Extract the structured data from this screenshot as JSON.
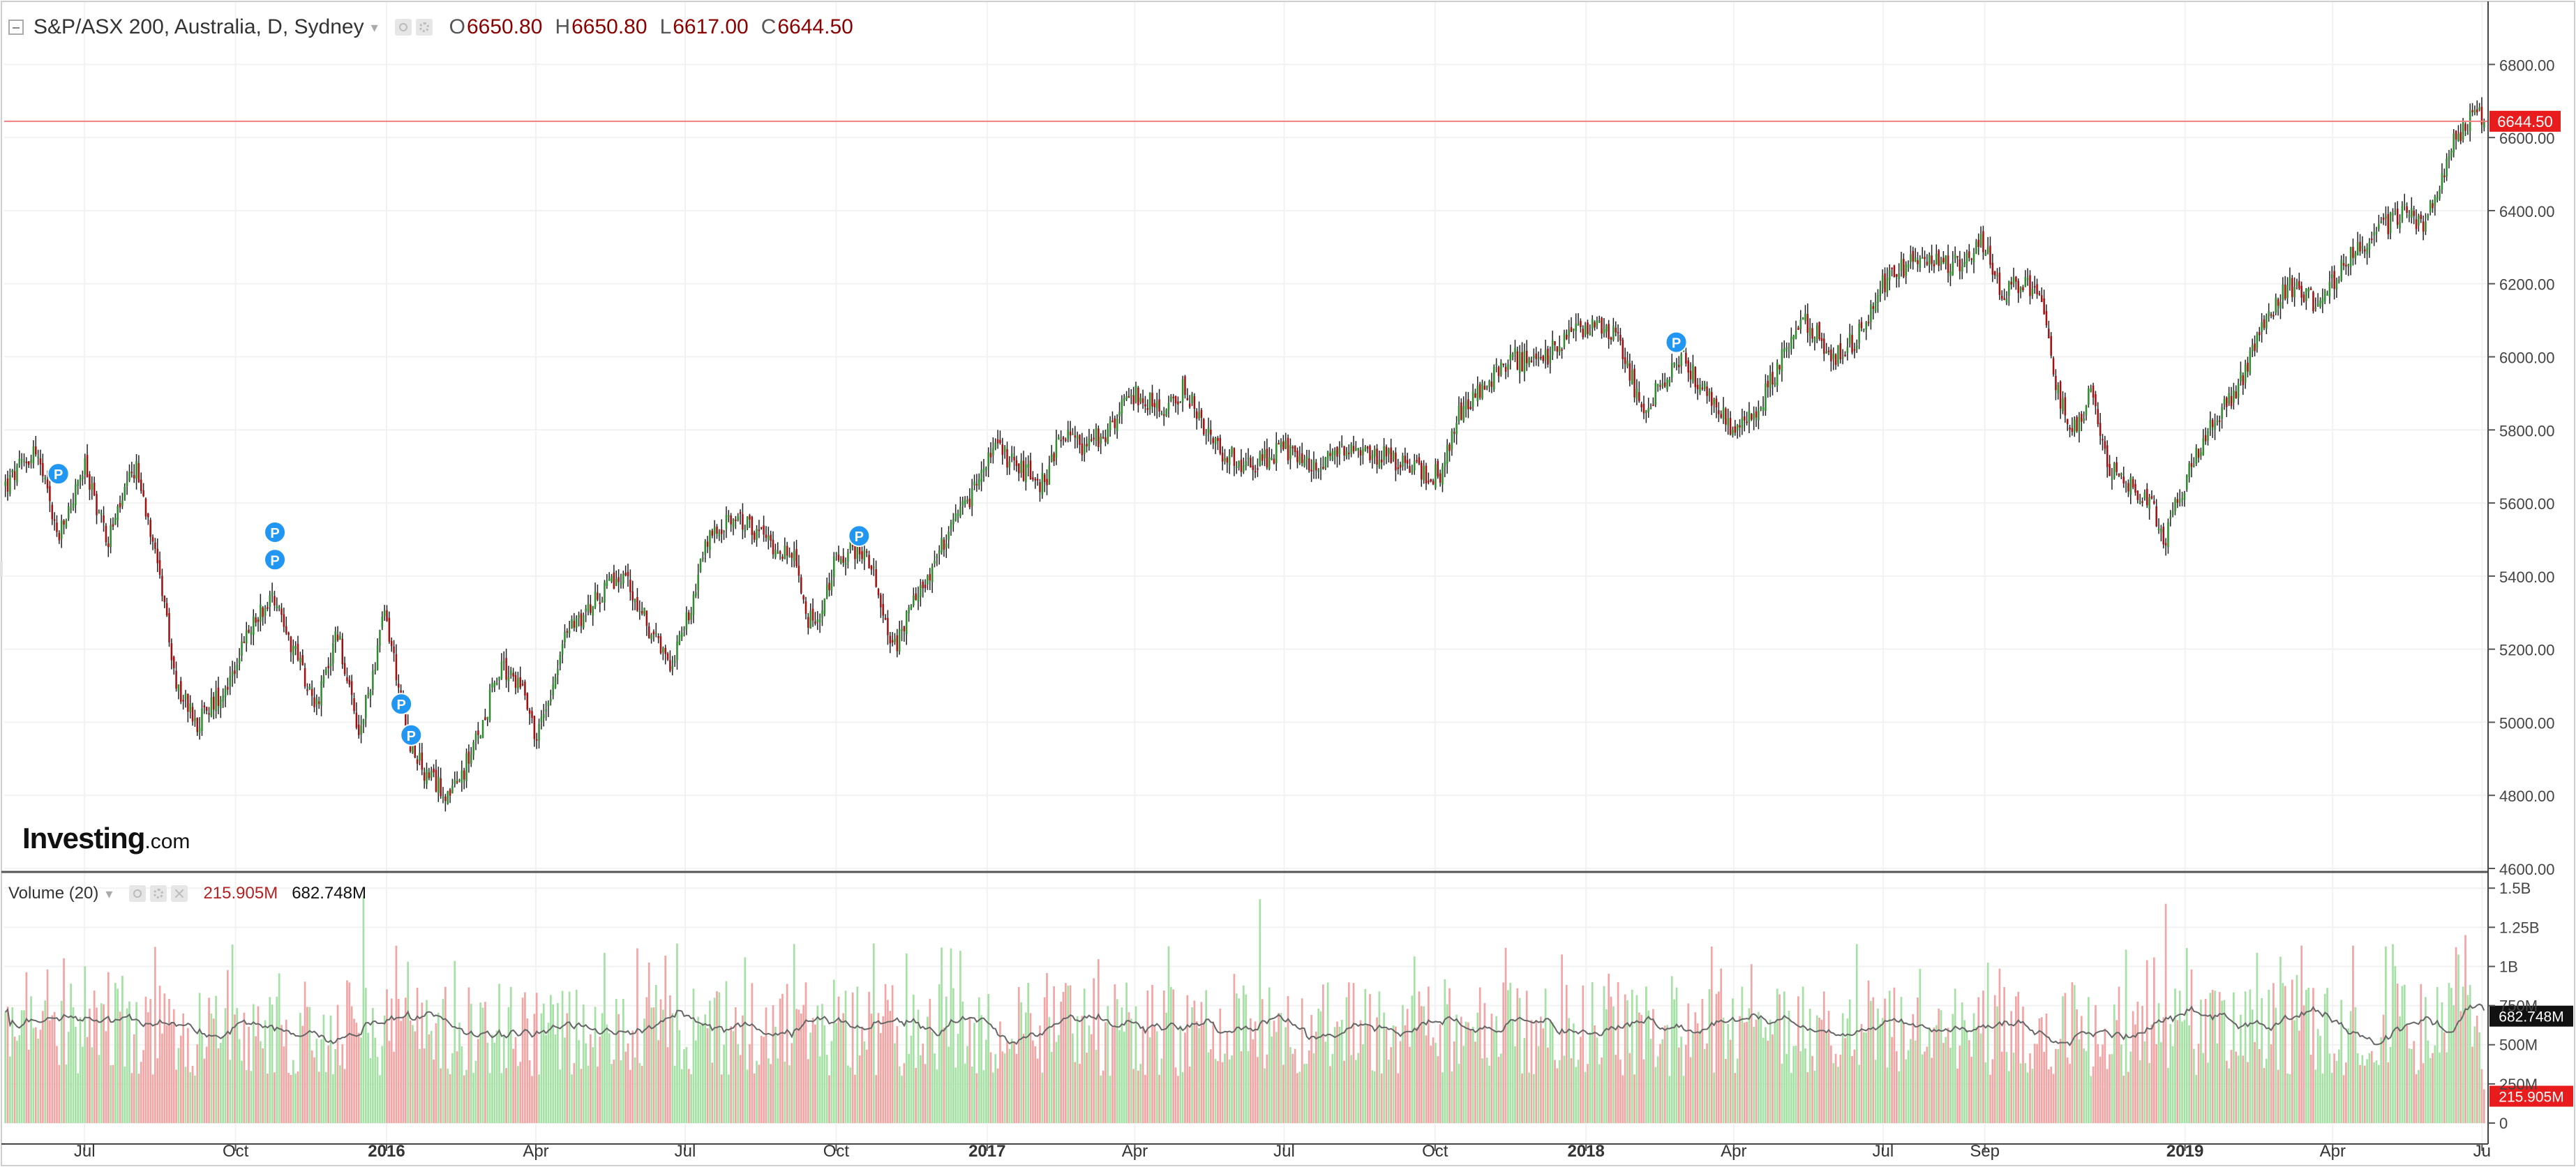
{
  "legend": {
    "symbol": "S&P/ASX 200, Australia, D, Sydney",
    "open_key": "O",
    "open_val": "6650.80",
    "high_key": "H",
    "high_val": "6650.80",
    "low_key": "L",
    "low_val": "6617.00",
    "close_key": "C",
    "close_val": "6644.50"
  },
  "volume_legend": {
    "label": "Volume (20)",
    "value_a": "215.905M",
    "value_b": "682.748M"
  },
  "logo": {
    "main": "Investing",
    "domain": ".com"
  },
  "colors": {
    "up_candle": "#2e8b2e",
    "down_candle": "#a30f0f",
    "wick": "#222222",
    "up_volume": "#a5e0a5",
    "down_volume": "#f2a5a5",
    "price_line": "#f08080",
    "price_tag_bg": "#e81c1c",
    "volume_tag_bg": "#111111",
    "grid": "#f2f2f2",
    "marker": "#2196f3",
    "volume_ma_line": "#666666"
  },
  "chart_data": [
    {
      "type": "candlestick",
      "title": "S&P/ASX 200, Australia, D, Sydney",
      "ylim": [
        4600,
        6900
      ],
      "y_ticks": [
        "6800.00",
        "6600.00",
        "6400.00",
        "6200.00",
        "6000.00",
        "5800.00",
        "5600.00",
        "5400.00",
        "5200.00",
        "5000.00",
        "4800.00",
        "4600.00"
      ],
      "x_ticks": [
        {
          "label": "Jul",
          "date": "2015-07-01"
        },
        {
          "label": "Oct",
          "date": "2015-10-01"
        },
        {
          "label": "2016",
          "date": "2016-01-01"
        },
        {
          "label": "Apr",
          "date": "2016-04-01"
        },
        {
          "label": "Jul",
          "date": "2016-07-01"
        },
        {
          "label": "Oct",
          "date": "2016-10-01"
        },
        {
          "label": "2017",
          "date": "2017-01-01"
        },
        {
          "label": "Apr",
          "date": "2017-04-01"
        },
        {
          "label": "Jul",
          "date": "2017-07-01"
        },
        {
          "label": "Oct",
          "date": "2017-10-01"
        },
        {
          "label": "2018",
          "date": "2018-01-01"
        },
        {
          "label": "Apr",
          "date": "2018-04-01"
        },
        {
          "label": "Jul",
          "date": "2018-07-01"
        },
        {
          "label": "Sep",
          "date": "2018-09-01"
        },
        {
          "label": "2019",
          "date": "2019-01-01"
        },
        {
          "label": "Apr",
          "date": "2019-04-01"
        },
        {
          "label": "Ju",
          "date": "2019-07-01"
        }
      ],
      "x_range": [
        "2015-05-13",
        "2019-07-03"
      ],
      "last_price": 6644.5,
      "last_price_label": "6644.50",
      "close_path": [
        [
          "2015-05-15",
          5650
        ],
        [
          "2015-06-01",
          5750
        ],
        [
          "2015-06-15",
          5500
        ],
        [
          "2015-07-01",
          5700
        ],
        [
          "2015-07-15",
          5500
        ],
        [
          "2015-08-01",
          5700
        ],
        [
          "2015-08-15",
          5450
        ],
        [
          "2015-08-25",
          5100
        ],
        [
          "2015-09-08",
          5000
        ],
        [
          "2015-09-25",
          5100
        ],
        [
          "2015-10-15",
          5300
        ],
        [
          "2015-10-25",
          5350
        ],
        [
          "2015-11-05",
          5200
        ],
        [
          "2015-11-20",
          5050
        ],
        [
          "2015-12-02",
          5250
        ],
        [
          "2015-12-15",
          4950
        ],
        [
          "2015-12-31",
          5300
        ],
        [
          "2016-01-15",
          4950
        ],
        [
          "2016-01-25",
          4850
        ],
        [
          "2016-02-10",
          4800
        ],
        [
          "2016-02-25",
          4950
        ],
        [
          "2016-03-10",
          5150
        ],
        [
          "2016-03-25",
          5100
        ],
        [
          "2016-04-01",
          4950
        ],
        [
          "2016-04-20",
          5250
        ],
        [
          "2016-05-10",
          5350
        ],
        [
          "2016-05-25",
          5400
        ],
        [
          "2016-06-10",
          5250
        ],
        [
          "2016-06-20",
          5150
        ],
        [
          "2016-06-30",
          5250
        ],
        [
          "2016-07-15",
          5500
        ],
        [
          "2016-08-01",
          5560
        ],
        [
          "2016-08-20",
          5500
        ],
        [
          "2016-09-05",
          5450
        ],
        [
          "2016-09-12",
          5300
        ],
        [
          "2016-09-20",
          5250
        ],
        [
          "2016-10-01",
          5450
        ],
        [
          "2016-10-15",
          5480
        ],
        [
          "2016-10-25",
          5400
        ],
        [
          "2016-11-05",
          5200
        ],
        [
          "2016-11-15",
          5300
        ],
        [
          "2016-12-01",
          5450
        ],
        [
          "2016-12-20",
          5600
        ],
        [
          "2017-01-05",
          5750
        ],
        [
          "2017-01-20",
          5700
        ],
        [
          "2017-02-05",
          5650
        ],
        [
          "2017-02-15",
          5800
        ],
        [
          "2017-03-01",
          5750
        ],
        [
          "2017-03-15",
          5800
        ],
        [
          "2017-04-01",
          5900
        ],
        [
          "2017-04-20",
          5850
        ],
        [
          "2017-05-01",
          5920
        ],
        [
          "2017-05-20",
          5750
        ],
        [
          "2017-06-10",
          5700
        ],
        [
          "2017-07-01",
          5750
        ],
        [
          "2017-07-15",
          5700
        ],
        [
          "2017-08-01",
          5730
        ],
        [
          "2017-08-20",
          5740
        ],
        [
          "2017-09-05",
          5720
        ],
        [
          "2017-09-25",
          5680
        ],
        [
          "2017-10-05",
          5680
        ],
        [
          "2017-10-15",
          5850
        ],
        [
          "2017-11-01",
          5920
        ],
        [
          "2017-11-15",
          6000
        ],
        [
          "2017-12-01",
          5980
        ],
        [
          "2017-12-20",
          6050
        ],
        [
          "2018-01-05",
          6100
        ],
        [
          "2018-01-20",
          6050
        ],
        [
          "2018-02-05",
          5850
        ],
        [
          "2018-02-20",
          5950
        ],
        [
          "2018-03-01",
          6000
        ],
        [
          "2018-03-15",
          5900
        ],
        [
          "2018-04-01",
          5800
        ],
        [
          "2018-04-15",
          5850
        ],
        [
          "2018-05-01",
          6000
        ],
        [
          "2018-05-15",
          6100
        ],
        [
          "2018-06-01",
          6000
        ],
        [
          "2018-06-15",
          6050
        ],
        [
          "2018-07-01",
          6200
        ],
        [
          "2018-07-15",
          6250
        ],
        [
          "2018-08-01",
          6270
        ],
        [
          "2018-08-15",
          6250
        ],
        [
          "2018-08-30",
          6320
        ],
        [
          "2018-09-10",
          6180
        ],
        [
          "2018-09-25",
          6200
        ],
        [
          "2018-10-05",
          6150
        ],
        [
          "2018-10-15",
          5900
        ],
        [
          "2018-10-25",
          5800
        ],
        [
          "2018-11-05",
          5900
        ],
        [
          "2018-11-15",
          5700
        ],
        [
          "2018-11-25",
          5650
        ],
        [
          "2018-12-10",
          5620
        ],
        [
          "2018-12-20",
          5500
        ],
        [
          "2018-12-31",
          5650
        ],
        [
          "2019-01-15",
          5800
        ],
        [
          "2019-02-01",
          5900
        ],
        [
          "2019-02-20",
          6100
        ],
        [
          "2019-03-05",
          6200
        ],
        [
          "2019-03-20",
          6150
        ],
        [
          "2019-04-01",
          6200
        ],
        [
          "2019-04-15",
          6300
        ],
        [
          "2019-05-01",
          6350
        ],
        [
          "2019-05-15",
          6400
        ],
        [
          "2019-05-25",
          6350
        ],
        [
          "2019-06-05",
          6480
        ],
        [
          "2019-06-15",
          6600
        ],
        [
          "2019-06-28",
          6670
        ],
        [
          "2019-07-02",
          6644.5
        ]
      ],
      "markers": [
        {
          "label": "P",
          "date": "2015-06-15",
          "price": 5680
        },
        {
          "label": "P",
          "date": "2015-10-25",
          "price": 5520
        },
        {
          "label": "P",
          "date": "2015-10-25",
          "price": 5445
        },
        {
          "label": "P",
          "date": "2016-01-10",
          "price": 5050
        },
        {
          "label": "P",
          "date": "2016-01-16",
          "price": 4965
        },
        {
          "label": "P",
          "date": "2016-10-15",
          "price": 5510
        },
        {
          "label": "P",
          "date": "2018-02-25",
          "price": 6040
        }
      ]
    },
    {
      "type": "bar",
      "title": "Volume (20)",
      "ylim": [
        0,
        1550000000
      ],
      "y_ticks": [
        "1.5B",
        "1.25B",
        "1B",
        "750M",
        "500M",
        "250M",
        "0"
      ],
      "current_volume": 215905000,
      "current_volume_label": "215.905M",
      "ma_value": 682748000,
      "ma_value_label": "682.748M",
      "typical_range": [
        300000000,
        900000000
      ],
      "spikes": [
        {
          "date": "2015-12-18",
          "value": 1450000000
        },
        {
          "date": "2016-12-16",
          "value": 1100000000
        },
        {
          "date": "2017-06-16",
          "value": 1430000000
        },
        {
          "date": "2018-12-21",
          "value": 1400000000
        },
        {
          "date": "2019-06-21",
          "value": 1200000000
        }
      ]
    }
  ]
}
